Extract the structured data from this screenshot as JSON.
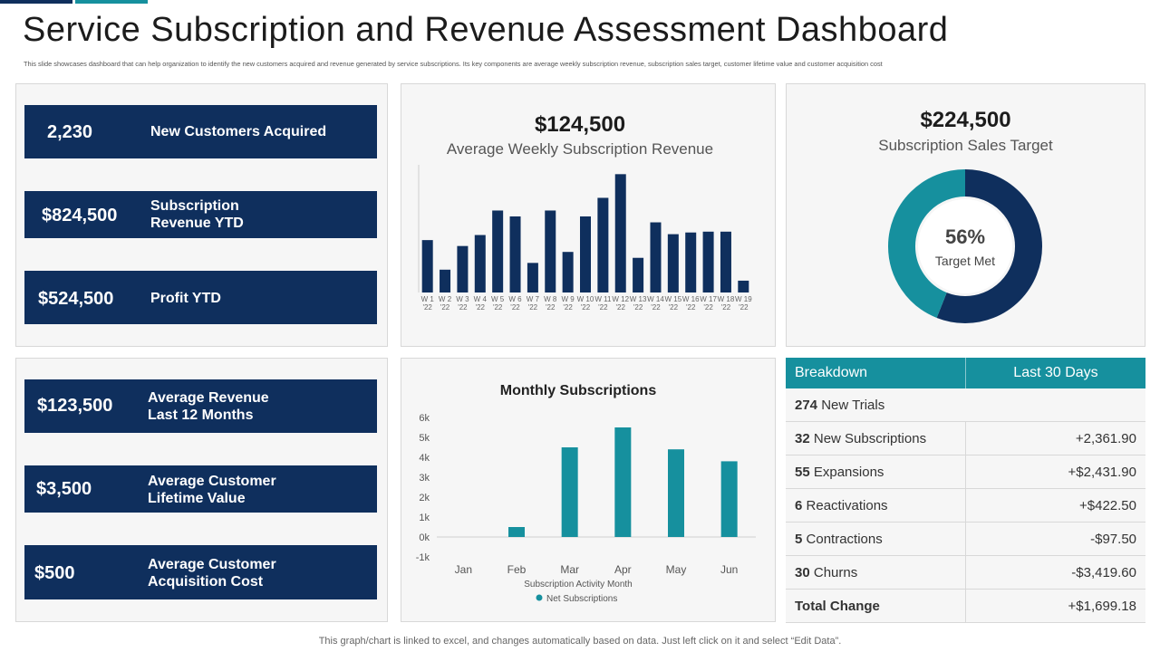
{
  "header": {
    "title": "Service Subscription and Revenue Assessment Dashboard",
    "subtitle": "This slide showcases dashboard that can help organization to identify the new customers acquired and revenue generated by service subscriptions. Its key components are average weekly subscription revenue, subscription sales target, customer lifetime value and customer acquisition cost"
  },
  "kpis_top": [
    {
      "value": "2,230",
      "label_line1": "New Customers Acquired",
      "label_line2": ""
    },
    {
      "value": "$824,500",
      "label_line1": "Subscription",
      "label_line2": "Revenue YTD"
    },
    {
      "value": "$524,500",
      "label_line1": "Profit YTD",
      "label_line2": ""
    }
  ],
  "kpis_bottom": [
    {
      "value": "$123,500",
      "label_line1": "Average Revenue",
      "label_line2": "Last 12 Months"
    },
    {
      "value": "$3,500",
      "label_line1": "Average Customer",
      "label_line2": "Lifetime Value"
    },
    {
      "value": "$500",
      "label_line1": "Average Customer",
      "label_line2": "Acquisition Cost"
    }
  ],
  "weekly": {
    "big_value": "$124,500",
    "caption": "Average Weekly Subscription Revenue"
  },
  "target": {
    "big_value": "$224,500",
    "caption": "Subscription Sales Target",
    "center_pct": "56%",
    "center_label": "Target Met"
  },
  "colors": {
    "navy": "#0f2f5d",
    "teal": "#16909e",
    "positive": "#1aa34a",
    "negative": "#d0202a"
  },
  "chart_data": [
    {
      "type": "bar",
      "title": "",
      "xlabel": "",
      "ylabel": "",
      "categories": [
        "W 1 '22",
        "W 2 '22",
        "W 3 '22",
        "W 4 '22",
        "W 5 '22",
        "W 6 '22",
        "W 7 '22",
        "W 8 '22",
        "W 9 '22",
        "W 10 '22",
        "W 11 '22",
        "W 12 '22",
        "W 13 '22",
        "W 14 '22",
        "W 15 '22",
        "W 16 '22",
        "W 17 '22",
        "W 18 '22",
        "W 19 '22"
      ],
      "values": [
        62,
        27,
        55,
        68,
        97,
        90,
        35,
        97,
        48,
        90,
        112,
        140,
        41,
        83,
        69,
        71,
        72,
        72,
        14
      ],
      "ylim": [
        0,
        150
      ],
      "grid": false,
      "color": "#0f2f5d"
    },
    {
      "type": "pie",
      "title": "",
      "categories": [
        "Target Met",
        "Remaining"
      ],
      "values": [
        56,
        44
      ],
      "colors": [
        "#0f2f5d",
        "#16909e"
      ]
    },
    {
      "type": "bar",
      "title": "Monthly Subscriptions",
      "xlabel": "Subscription Activity Month",
      "ylabel": "",
      "categories": [
        "Jan",
        "Feb",
        "Mar",
        "Apr",
        "May",
        "Jun"
      ],
      "series": [
        {
          "name": "Net Subscriptions",
          "values": [
            0,
            500,
            4500,
            5500,
            4400,
            3800
          ]
        }
      ],
      "ylim": [
        -1000,
        6000
      ],
      "yticks": [
        "-1k",
        "0k",
        "1k",
        "2k",
        "3k",
        "4k",
        "5k",
        "6k"
      ],
      "legend": "bottom",
      "grid": false,
      "color": "#16909e"
    }
  ],
  "breakdown": {
    "header_left": "Breakdown",
    "header_right": "Last 30 Days",
    "rows": [
      {
        "count": "274",
        "label": "New Trials",
        "value": "",
        "sign": ""
      },
      {
        "count": "32",
        "label": "New Subscriptions",
        "value": "+2,361.90",
        "sign": "pos"
      },
      {
        "count": "55",
        "label": "Expansions",
        "value": "+$2,431.90",
        "sign": "pos"
      },
      {
        "count": "6",
        "label": "Reactivations",
        "value": "+$422.50",
        "sign": "pos"
      },
      {
        "count": "5",
        "label": "Contractions",
        "value": "-$97.50",
        "sign": "neg"
      },
      {
        "count": "30",
        "label": "Churns",
        "value": "-$3,419.60",
        "sign": "neg"
      }
    ],
    "total_label": "Total Change",
    "total_value": "+$1,699.18"
  },
  "footer": "This graph/chart is linked to excel, and changes automatically based on data. Just left click on it and select “Edit Data”."
}
